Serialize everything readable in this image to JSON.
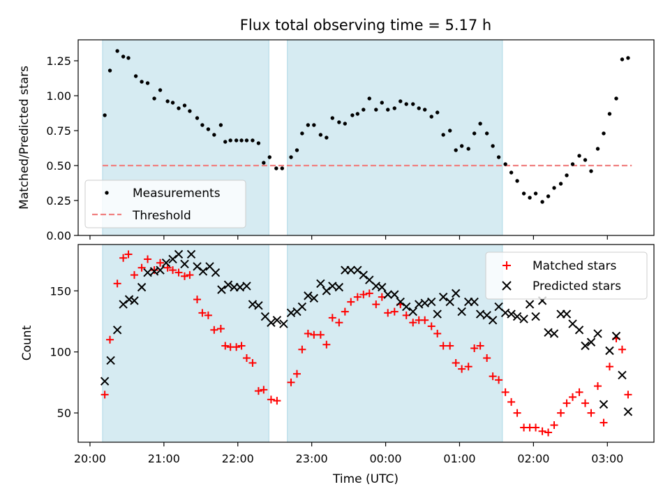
{
  "chart_data": [
    {
      "type": "scatter",
      "title": "Flux total observing time = 5.17 h",
      "ylabel": "Matched/Predicted stars",
      "xlabel": "",
      "x_ticks": [
        "20:00",
        "21:00",
        "22:00",
        "23:00",
        "00:00",
        "01:00",
        "02:00",
        "03:00"
      ],
      "y_ticks": [
        "0.00",
        "0.25",
        "0.50",
        "0.75",
        "1.00",
        "1.25"
      ],
      "ylim": [
        0,
        1.4
      ],
      "xlim_hours": [
        19.84,
        27.63
      ],
      "grid": false,
      "legend_placement": "lower-left",
      "observing_windows": [
        [
          20.17,
          22.42
        ],
        [
          22.67,
          25.58
        ]
      ],
      "threshold": {
        "name": "Threshold",
        "value": 0.5,
        "x_range": [
          20.17,
          27.33
        ],
        "color": "#f08080"
      },
      "series": [
        {
          "name": "Measurements",
          "color": "#000000",
          "points": [
            [
              20.2,
              0.86
            ],
            [
              20.27,
              1.18
            ],
            [
              20.37,
              1.32
            ],
            [
              20.45,
              1.28
            ],
            [
              20.52,
              1.27
            ],
            [
              20.62,
              1.14
            ],
            [
              20.7,
              1.1
            ],
            [
              20.78,
              1.09
            ],
            [
              20.87,
              0.98
            ],
            [
              20.95,
              1.04
            ],
            [
              21.05,
              0.96
            ],
            [
              21.12,
              0.95
            ],
            [
              21.2,
              0.91
            ],
            [
              21.28,
              0.93
            ],
            [
              21.35,
              0.89
            ],
            [
              21.45,
              0.84
            ],
            [
              21.52,
              0.79
            ],
            [
              21.6,
              0.76
            ],
            [
              21.68,
              0.72
            ],
            [
              21.77,
              0.79
            ],
            [
              21.83,
              0.67
            ],
            [
              21.9,
              0.68
            ],
            [
              21.98,
              0.68
            ],
            [
              22.05,
              0.68
            ],
            [
              22.12,
              0.68
            ],
            [
              22.2,
              0.68
            ],
            [
              22.28,
              0.66
            ],
            [
              22.35,
              0.52
            ],
            [
              22.43,
              0.56
            ],
            [
              22.52,
              0.48
            ],
            [
              22.6,
              0.48
            ],
            [
              22.72,
              0.56
            ],
            [
              22.8,
              0.61
            ],
            [
              22.87,
              0.73
            ],
            [
              22.95,
              0.79
            ],
            [
              23.03,
              0.79
            ],
            [
              23.12,
              0.72
            ],
            [
              23.2,
              0.7
            ],
            [
              23.28,
              0.84
            ],
            [
              23.37,
              0.81
            ],
            [
              23.45,
              0.8
            ],
            [
              23.55,
              0.86
            ],
            [
              23.62,
              0.87
            ],
            [
              23.7,
              0.9
            ],
            [
              23.78,
              0.98
            ],
            [
              23.87,
              0.9
            ],
            [
              23.95,
              0.95
            ],
            [
              24.03,
              0.9
            ],
            [
              24.12,
              0.91
            ],
            [
              24.2,
              0.96
            ],
            [
              24.28,
              0.94
            ],
            [
              24.37,
              0.94
            ],
            [
              24.45,
              0.91
            ],
            [
              24.53,
              0.9
            ],
            [
              24.62,
              0.85
            ],
            [
              24.7,
              0.88
            ],
            [
              24.78,
              0.72
            ],
            [
              24.87,
              0.75
            ],
            [
              24.95,
              0.61
            ],
            [
              25.03,
              0.64
            ],
            [
              25.12,
              0.62
            ],
            [
              25.2,
              0.73
            ],
            [
              25.28,
              0.8
            ],
            [
              25.37,
              0.73
            ],
            [
              25.45,
              0.64
            ],
            [
              25.53,
              0.56
            ],
            [
              25.62,
              0.51
            ],
            [
              25.7,
              0.45
            ],
            [
              25.78,
              0.39
            ],
            [
              25.87,
              0.3
            ],
            [
              25.95,
              0.27
            ],
            [
              26.03,
              0.3
            ],
            [
              26.12,
              0.24
            ],
            [
              26.2,
              0.28
            ],
            [
              26.28,
              0.34
            ],
            [
              26.37,
              0.37
            ],
            [
              26.45,
              0.43
            ],
            [
              26.53,
              0.51
            ],
            [
              26.62,
              0.57
            ],
            [
              26.7,
              0.54
            ],
            [
              26.78,
              0.46
            ],
            [
              26.87,
              0.62
            ],
            [
              26.95,
              0.73
            ],
            [
              27.03,
              0.87
            ],
            [
              27.12,
              0.98
            ],
            [
              27.2,
              1.26
            ],
            [
              27.28,
              1.27
            ]
          ]
        }
      ]
    },
    {
      "type": "scatter",
      "title": "",
      "ylabel": "Count",
      "xlabel": "Time (UTC)",
      "x_ticks": [
        "20:00",
        "21:00",
        "22:00",
        "23:00",
        "00:00",
        "01:00",
        "02:00",
        "03:00"
      ],
      "y_ticks": [
        "50",
        "100",
        "150"
      ],
      "ylim": [
        26,
        188
      ],
      "xlim_hours": [
        19.84,
        27.63
      ],
      "grid": false,
      "legend_placement": "top-right",
      "observing_windows": [
        [
          20.17,
          22.42
        ],
        [
          22.67,
          25.58
        ]
      ],
      "series": [
        {
          "name": "Matched stars",
          "color": "#ff0000",
          "marker": "plus",
          "points": [
            [
              20.2,
              65
            ],
            [
              20.27,
              110
            ],
            [
              20.37,
              156
            ],
            [
              20.45,
              177
            ],
            [
              20.52,
              180
            ],
            [
              20.6,
              163
            ],
            [
              20.7,
              169
            ],
            [
              20.78,
              176
            ],
            [
              20.87,
              167
            ],
            [
              20.95,
              173
            ],
            [
              21.05,
              169
            ],
            [
              21.12,
              167
            ],
            [
              21.2,
              165
            ],
            [
              21.28,
              162
            ],
            [
              21.35,
              163
            ],
            [
              21.45,
              143
            ],
            [
              21.52,
              132
            ],
            [
              21.6,
              130
            ],
            [
              21.68,
              118
            ],
            [
              21.77,
              119
            ],
            [
              21.83,
              105
            ],
            [
              21.9,
              104
            ],
            [
              21.98,
              104
            ],
            [
              22.05,
              105
            ],
            [
              22.12,
              95
            ],
            [
              22.2,
              91
            ],
            [
              22.28,
              68
            ],
            [
              22.35,
              69
            ],
            [
              22.45,
              61
            ],
            [
              22.53,
              60
            ],
            [
              22.72,
              75
            ],
            [
              22.8,
              82
            ],
            [
              22.87,
              102
            ],
            [
              22.95,
              115
            ],
            [
              23.03,
              114
            ],
            [
              23.12,
              114
            ],
            [
              23.2,
              106
            ],
            [
              23.28,
              128
            ],
            [
              23.37,
              124
            ],
            [
              23.45,
              133
            ],
            [
              23.53,
              141
            ],
            [
              23.62,
              145
            ],
            [
              23.7,
              147
            ],
            [
              23.78,
              148
            ],
            [
              23.87,
              139
            ],
            [
              23.95,
              145
            ],
            [
              24.03,
              132
            ],
            [
              24.12,
              133
            ],
            [
              24.2,
              139
            ],
            [
              24.28,
              130
            ],
            [
              24.37,
              124
            ],
            [
              24.45,
              126
            ],
            [
              24.53,
              126
            ],
            [
              24.62,
              121
            ],
            [
              24.7,
              115
            ],
            [
              24.78,
              105
            ],
            [
              24.87,
              105
            ],
            [
              24.95,
              91
            ],
            [
              25.03,
              86
            ],
            [
              25.12,
              88
            ],
            [
              25.2,
              103
            ],
            [
              25.28,
              105
            ],
            [
              25.37,
              95
            ],
            [
              25.45,
              80
            ],
            [
              25.53,
              77
            ],
            [
              25.62,
              67
            ],
            [
              25.7,
              59
            ],
            [
              25.78,
              50
            ],
            [
              25.87,
              38
            ],
            [
              25.95,
              38
            ],
            [
              26.03,
              38
            ],
            [
              26.12,
              35
            ],
            [
              26.2,
              34
            ],
            [
              26.28,
              40
            ],
            [
              26.37,
              50
            ],
            [
              26.45,
              58
            ],
            [
              26.53,
              63
            ],
            [
              26.62,
              67
            ],
            [
              26.7,
              58
            ],
            [
              26.78,
              50
            ],
            [
              26.87,
              72
            ],
            [
              26.95,
              42
            ],
            [
              27.03,
              88
            ],
            [
              27.12,
              111
            ],
            [
              27.2,
              102
            ],
            [
              27.28,
              65
            ]
          ]
        },
        {
          "name": "Predicted stars",
          "color": "#000000",
          "marker": "x",
          "points": [
            [
              20.2,
              76
            ],
            [
              20.28,
              93
            ],
            [
              20.37,
              118
            ],
            [
              20.45,
              139
            ],
            [
              20.53,
              143
            ],
            [
              20.6,
              142
            ],
            [
              20.7,
              153
            ],
            [
              20.78,
              165
            ],
            [
              20.87,
              166
            ],
            [
              20.95,
              167
            ],
            [
              21.03,
              173
            ],
            [
              21.12,
              176
            ],
            [
              21.2,
              180
            ],
            [
              21.28,
              172
            ],
            [
              21.37,
              180
            ],
            [
              21.45,
              170
            ],
            [
              21.53,
              166
            ],
            [
              21.62,
              170
            ],
            [
              21.7,
              165
            ],
            [
              21.78,
              151
            ],
            [
              21.87,
              155
            ],
            [
              21.95,
              153
            ],
            [
              22.03,
              153
            ],
            [
              22.12,
              154
            ],
            [
              22.2,
              139
            ],
            [
              22.28,
              138
            ],
            [
              22.37,
              129
            ],
            [
              22.45,
              124
            ],
            [
              22.53,
              126
            ],
            [
              22.62,
              123
            ],
            [
              22.72,
              132
            ],
            [
              22.8,
              133
            ],
            [
              22.87,
              137
            ],
            [
              22.95,
              146
            ],
            [
              23.03,
              144
            ],
            [
              23.12,
              156
            ],
            [
              23.2,
              150
            ],
            [
              23.28,
              154
            ],
            [
              23.37,
              153
            ],
            [
              23.45,
              167
            ],
            [
              23.53,
              167
            ],
            [
              23.62,
              167
            ],
            [
              23.7,
              163
            ],
            [
              23.78,
              159
            ],
            [
              23.87,
              154
            ],
            [
              23.95,
              153
            ],
            [
              24.03,
              147
            ],
            [
              24.12,
              147
            ],
            [
              24.2,
              141
            ],
            [
              24.28,
              137
            ],
            [
              24.37,
              133
            ],
            [
              24.45,
              139
            ],
            [
              24.53,
              140
            ],
            [
              24.62,
              141
            ],
            [
              24.7,
              131
            ],
            [
              24.78,
              145
            ],
            [
              24.87,
              141
            ],
            [
              24.95,
              148
            ],
            [
              25.03,
              133
            ],
            [
              25.12,
              141
            ],
            [
              25.2,
              141
            ],
            [
              25.28,
              131
            ],
            [
              25.37,
              130
            ],
            [
              25.45,
              126
            ],
            [
              25.53,
              137
            ],
            [
              25.62,
              132
            ],
            [
              25.7,
              131
            ],
            [
              25.78,
              129
            ],
            [
              25.87,
              127
            ],
            [
              25.95,
              139
            ],
            [
              26.03,
              129
            ],
            [
              26.12,
              142
            ],
            [
              26.2,
              116
            ],
            [
              26.28,
              115
            ],
            [
              26.37,
              131
            ],
            [
              26.45,
              131
            ],
            [
              26.53,
              123
            ],
            [
              26.62,
              118
            ],
            [
              26.7,
              105
            ],
            [
              26.78,
              108
            ],
            [
              26.87,
              115
            ],
            [
              26.95,
              57
            ],
            [
              27.03,
              101
            ],
            [
              27.12,
              113
            ],
            [
              27.2,
              81
            ],
            [
              27.28,
              51
            ]
          ]
        }
      ]
    }
  ]
}
